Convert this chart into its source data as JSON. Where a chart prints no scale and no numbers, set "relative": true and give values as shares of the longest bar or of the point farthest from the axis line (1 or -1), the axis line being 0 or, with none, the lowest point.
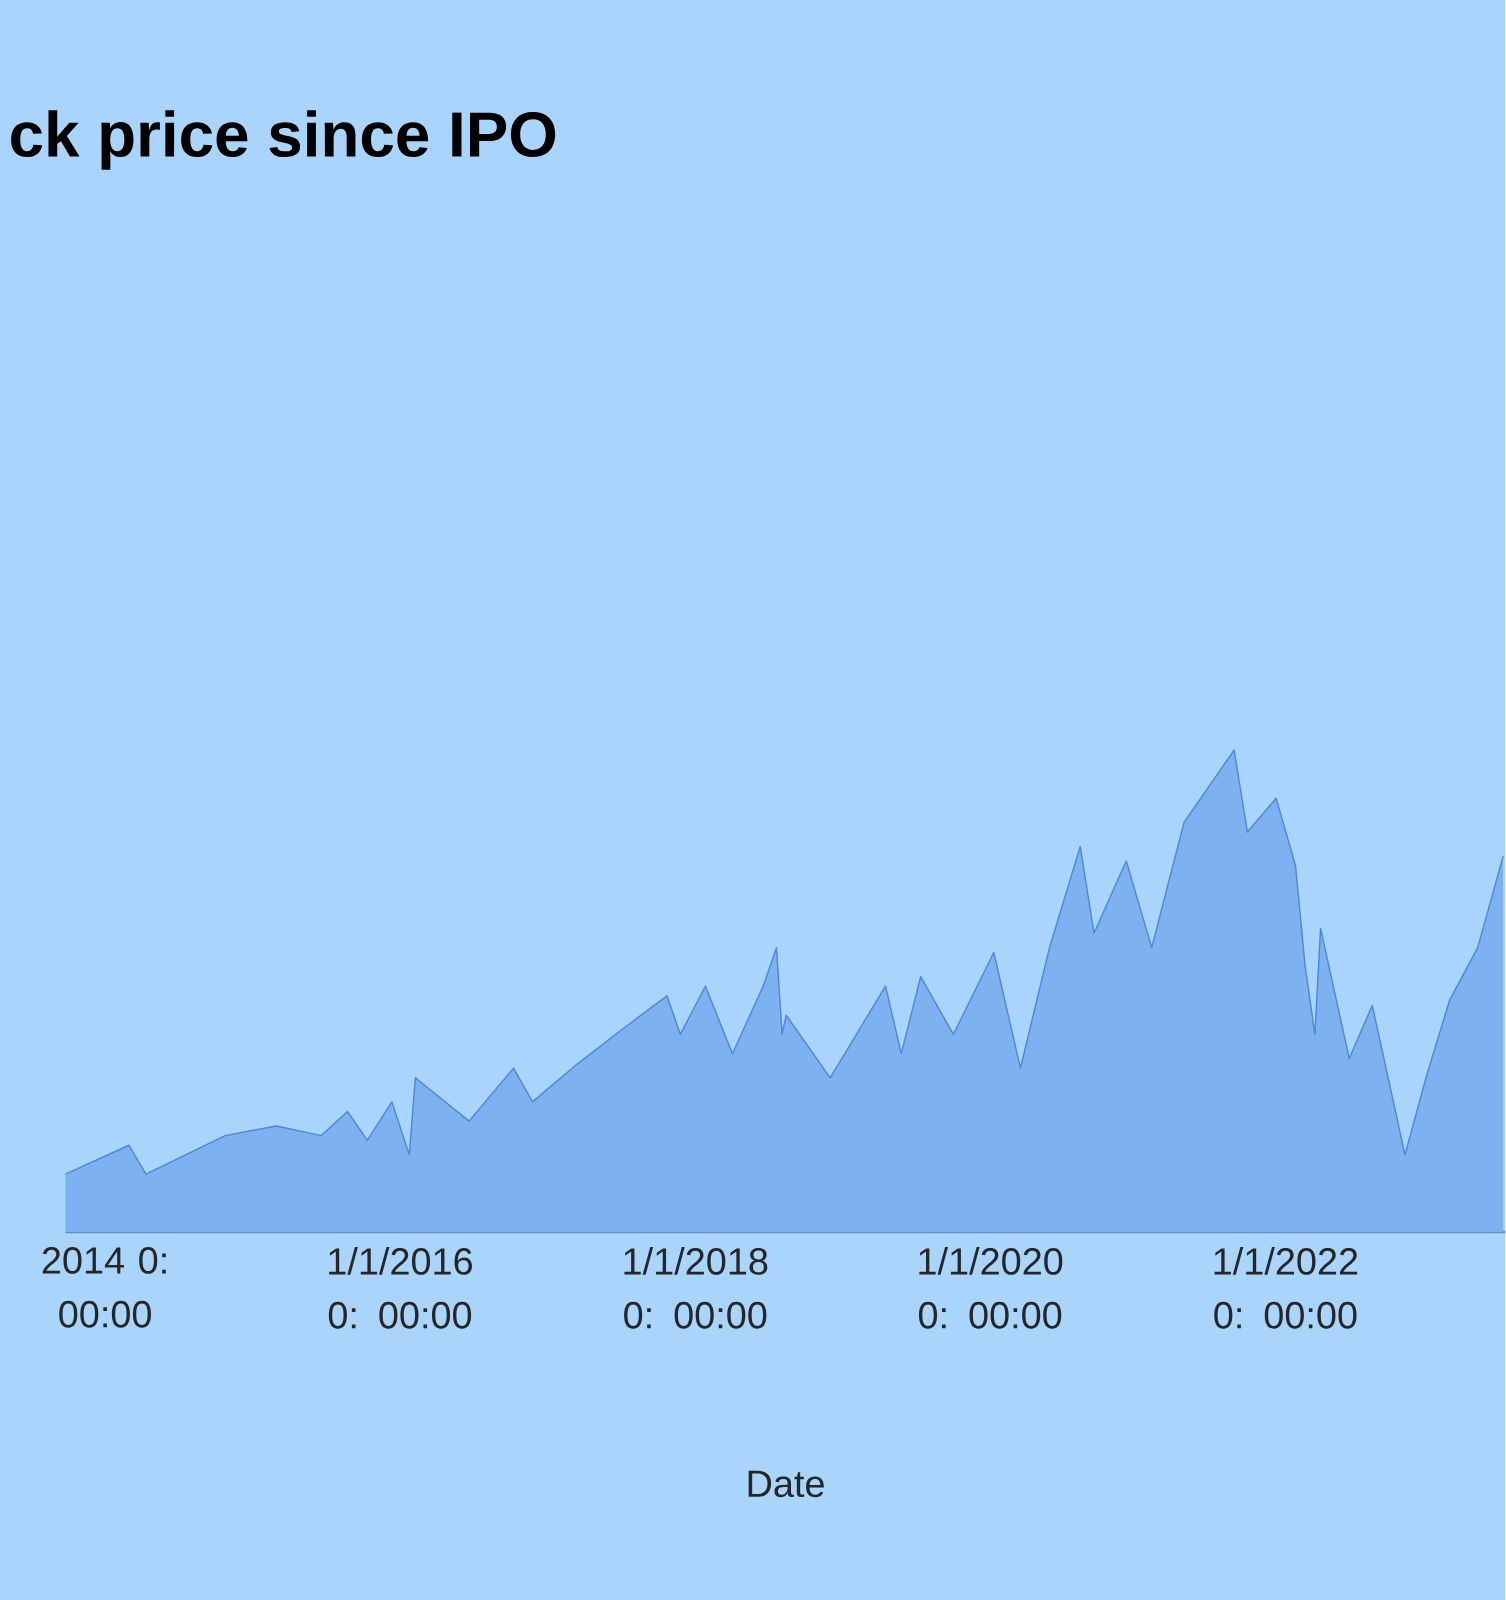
{
  "chart_data": {
    "type": "area",
    "title": "ck price since IPO",
    "xlabel": "Date",
    "relative": true,
    "color": "#4a86e0",
    "x": [
      "2013-09-25",
      "2014-03-01",
      "2014-04-12",
      "2014-10-25",
      "2015-03-01",
      "2015-06-20",
      "2015-08-24",
      "2015-10-12",
      "2015-12-12",
      "2016-01-24",
      "2016-02-08",
      "2016-06-20",
      "2016-10-08",
      "2016-11-24",
      "2017-03-17",
      "2017-07-19",
      "2017-10-23",
      "2017-11-25",
      "2018-01-26",
      "2018-04-03",
      "2018-06-18",
      "2018-07-21",
      "2018-08-04",
      "2018-08-14",
      "2018-12-01",
      "2019-04-17",
      "2019-05-26",
      "2019-07-13",
      "2019-10-02",
      "2020-01-10",
      "2020-03-16",
      "2020-05-27",
      "2020-08-11",
      "2020-09-14",
      "2020-12-03",
      "2021-02-04",
      "2021-04-25",
      "2021-08-27",
      "2021-09-29",
      "2021-12-09",
      "2022-01-26",
      "2022-02-19",
      "2022-03-15",
      "2022-03-29",
      "2022-06-08",
      "2022-08-04",
      "2022-10-24",
      "2022-12-15",
      "2023-02-11",
      "2023-04-22",
      "2023-06-24"
    ],
    "values": [
      0.12,
      0.18,
      0.12,
      0.2,
      0.22,
      0.2,
      0.25,
      0.19,
      0.27,
      0.16,
      0.32,
      0.23,
      0.34,
      0.27,
      0.35,
      0.43,
      0.49,
      0.41,
      0.51,
      0.37,
      0.51,
      0.59,
      0.41,
      0.45,
      0.32,
      0.51,
      0.37,
      0.53,
      0.41,
      0.58,
      0.34,
      0.59,
      0.8,
      0.62,
      0.77,
      0.59,
      0.85,
      1,
      0.83,
      0.9,
      0.76,
      0.55,
      0.41,
      0.63,
      0.36,
      0.47,
      0.16,
      0.32,
      0.48,
      0.59,
      0.78
    ],
    "xlim": [
      "2013-09-25",
      "2023-06-30"
    ],
    "xticks": [
      {
        "value": "2014-01-01",
        "label": "2014 0: 00:00"
      },
      {
        "value": "2016-01-01",
        "label": "1/1/2016 0: 00:00"
      },
      {
        "value": "2018-01-01",
        "label": "1/1/2018 0: 00:00"
      },
      {
        "value": "2020-01-01",
        "label": "1/1/2020 0: 00:00"
      },
      {
        "value": "2022-01-01",
        "label": "1/1/2022 0: 00:00"
      }
    ]
  }
}
